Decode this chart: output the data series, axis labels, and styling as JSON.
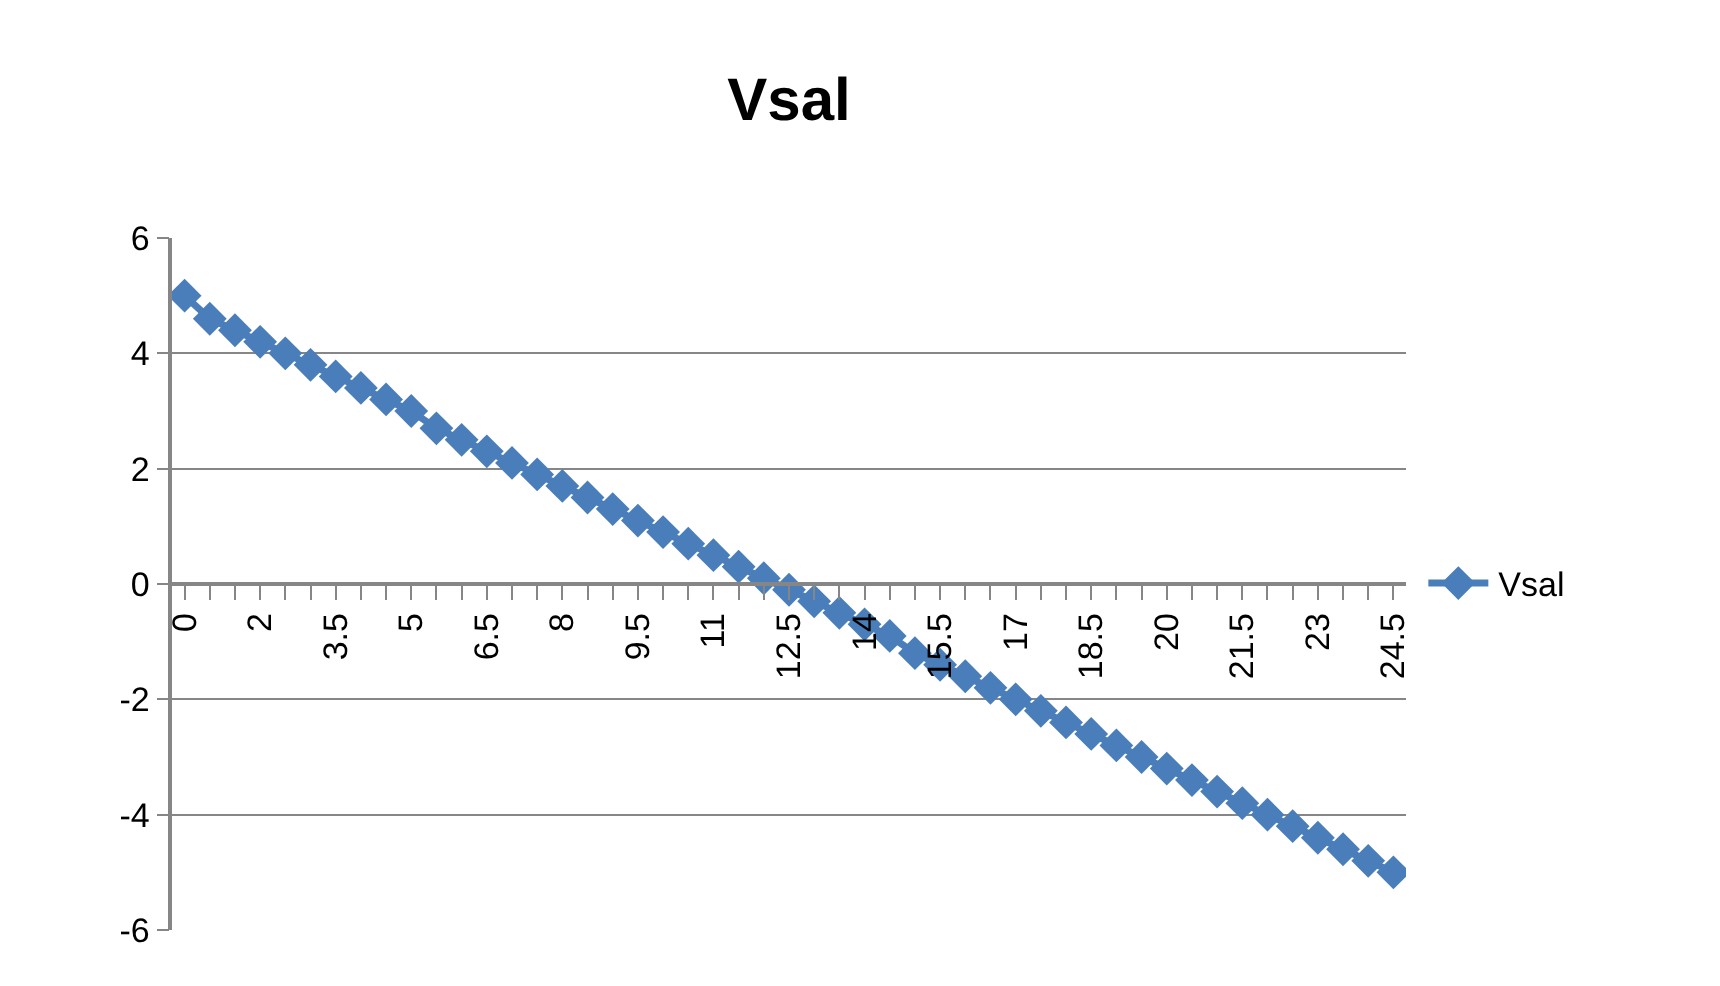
{
  "chart_data": {
    "type": "line",
    "title": "Vsal",
    "categories": [
      "0",
      null,
      null,
      "2",
      null,
      null,
      "3.5",
      null,
      null,
      "5",
      null,
      null,
      "6.5",
      null,
      null,
      "8",
      null,
      null,
      "9.5",
      null,
      null,
      "11",
      null,
      null,
      "12.5",
      null,
      null,
      "14",
      null,
      null,
      "15.5",
      null,
      null,
      "17",
      null,
      null,
      "18.5",
      null,
      null,
      "20",
      null,
      null,
      "21.5",
      null,
      null,
      "23",
      null,
      null,
      "24.5"
    ],
    "series": [
      {
        "name": "Vsal",
        "color": "#4a7ebb",
        "values": [
          5.0,
          4.6,
          4.4,
          4.2,
          4.0,
          3.8,
          3.6,
          3.4,
          3.2,
          3.0,
          2.7,
          2.5,
          2.3,
          2.1,
          1.9,
          1.7,
          1.5,
          1.3,
          1.1,
          0.9,
          0.7,
          0.5,
          0.3,
          0.1,
          -0.1,
          -0.3,
          -0.5,
          -0.7,
          -0.9,
          -1.2,
          -1.4,
          -1.6,
          -1.8,
          -2.0,
          -2.2,
          -2.4,
          -2.6,
          -2.8,
          -3.0,
          -3.2,
          -3.4,
          -3.6,
          -3.8,
          -4.0,
          -4.2,
          -4.4,
          -4.6,
          -4.8,
          -5.0
        ]
      }
    ],
    "ylim": [
      -6,
      6
    ],
    "yticks": [
      -6,
      -4,
      -2,
      0,
      2,
      4,
      6
    ],
    "grid": "y",
    "legend": "right",
    "marker": "diamond",
    "line_style": "solid"
  }
}
